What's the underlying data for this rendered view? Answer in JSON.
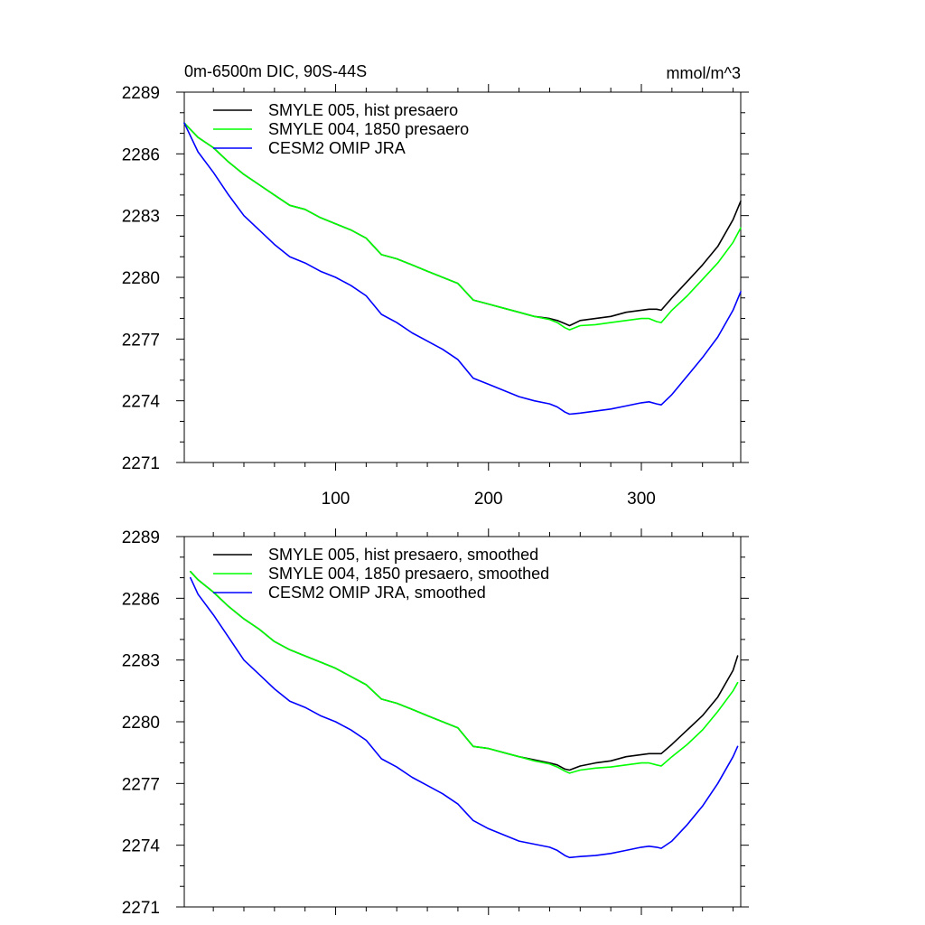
{
  "chart_data": [
    {
      "type": "line",
      "title": "0m-6500m DIC, 90S-44S",
      "units_label": "mmol/m^3",
      "xlim": [
        1,
        365
      ],
      "ylim": [
        2271,
        2289
      ],
      "yticks": [
        2271,
        2274,
        2277,
        2280,
        2283,
        2286,
        2289
      ],
      "xticks": [
        100,
        200,
        300
      ],
      "show_xtick_labels": true,
      "grid": false,
      "legend_position": "top-left",
      "series": [
        {
          "name": "SMYLE 005, hist presaero",
          "color": "#000000",
          "x": [
            1,
            10,
            20,
            30,
            40,
            50,
            60,
            70,
            80,
            90,
            100,
            110,
            120,
            130,
            140,
            150,
            160,
            170,
            180,
            190,
            200,
            210,
            220,
            230,
            240,
            245,
            250,
            253,
            260,
            270,
            280,
            290,
            300,
            305,
            310,
            313,
            320,
            330,
            340,
            350,
            360,
            365
          ],
          "y": [
            2287.5,
            2286.8,
            2286.3,
            2285.6,
            2285.0,
            2284.5,
            2284.0,
            2283.5,
            2283.3,
            2282.9,
            2282.6,
            2282.3,
            2281.9,
            2281.1,
            2280.9,
            2280.6,
            2280.3,
            2280.0,
            2279.7,
            2278.9,
            2278.7,
            2278.5,
            2278.3,
            2278.1,
            2278.0,
            2277.9,
            2277.75,
            2277.65,
            2277.9,
            2278.0,
            2278.1,
            2278.3,
            2278.4,
            2278.45,
            2278.45,
            2278.4,
            2279.0,
            2279.8,
            2280.6,
            2281.5,
            2282.8,
            2283.7
          ]
        },
        {
          "name": "SMYLE 004, 1850 presaero",
          "color": "#00ff00",
          "x": [
            1,
            10,
            20,
            30,
            40,
            50,
            60,
            70,
            80,
            90,
            100,
            110,
            120,
            130,
            140,
            150,
            160,
            170,
            180,
            190,
            200,
            210,
            220,
            230,
            240,
            245,
            250,
            253,
            260,
            270,
            280,
            290,
            300,
            305,
            310,
            313,
            320,
            330,
            340,
            350,
            360,
            365
          ],
          "y": [
            2287.5,
            2286.8,
            2286.3,
            2285.6,
            2285.0,
            2284.5,
            2284.0,
            2283.5,
            2283.3,
            2282.9,
            2282.6,
            2282.3,
            2281.9,
            2281.1,
            2280.9,
            2280.6,
            2280.3,
            2280.0,
            2279.7,
            2278.9,
            2278.7,
            2278.5,
            2278.3,
            2278.1,
            2277.95,
            2277.8,
            2277.55,
            2277.45,
            2277.65,
            2277.7,
            2277.8,
            2277.9,
            2278.0,
            2278.0,
            2277.85,
            2277.8,
            2278.4,
            2279.1,
            2279.9,
            2280.7,
            2281.7,
            2282.4
          ]
        },
        {
          "name": "CESM2 OMIP JRA",
          "color": "#0000ff",
          "x": [
            1,
            10,
            20,
            30,
            40,
            50,
            60,
            70,
            80,
            90,
            100,
            110,
            120,
            130,
            140,
            150,
            160,
            170,
            180,
            190,
            200,
            210,
            220,
            230,
            240,
            245,
            250,
            253,
            260,
            270,
            280,
            290,
            300,
            305,
            310,
            313,
            320,
            330,
            340,
            350,
            360,
            365
          ],
          "y": [
            2287.5,
            2286.1,
            2285.1,
            2284.0,
            2283.0,
            2282.3,
            2281.6,
            2281.0,
            2280.7,
            2280.3,
            2280.0,
            2279.6,
            2279.1,
            2278.2,
            2277.8,
            2277.3,
            2276.9,
            2276.5,
            2276.0,
            2275.1,
            2274.8,
            2274.5,
            2274.2,
            2274.0,
            2273.85,
            2273.7,
            2273.45,
            2273.35,
            2273.4,
            2273.5,
            2273.6,
            2273.75,
            2273.9,
            2273.95,
            2273.85,
            2273.8,
            2274.3,
            2275.2,
            2276.1,
            2277.1,
            2278.4,
            2279.3
          ]
        }
      ]
    },
    {
      "type": "line",
      "title": "",
      "xlim": [
        1,
        365
      ],
      "ylim": [
        2271,
        2289
      ],
      "yticks": [
        2271,
        2274,
        2277,
        2280,
        2283,
        2286,
        2289
      ],
      "xticks": [
        100,
        200,
        300
      ],
      "show_xtick_labels": false,
      "grid": false,
      "legend_position": "top-left",
      "series": [
        {
          "name": "SMYLE 005, hist presaero, smoothed",
          "color": "#000000",
          "x": [
            5,
            10,
            20,
            30,
            40,
            50,
            60,
            70,
            80,
            90,
            100,
            110,
            120,
            130,
            140,
            150,
            160,
            170,
            180,
            190,
            200,
            210,
            220,
            230,
            240,
            245,
            250,
            253,
            260,
            270,
            280,
            290,
            300,
            305,
            310,
            313,
            320,
            330,
            340,
            350,
            360,
            363
          ],
          "y": [
            2287.3,
            2286.9,
            2286.3,
            2285.6,
            2285.0,
            2284.5,
            2283.9,
            2283.5,
            2283.2,
            2282.9,
            2282.6,
            2282.2,
            2281.8,
            2281.1,
            2280.9,
            2280.6,
            2280.3,
            2280.0,
            2279.7,
            2278.8,
            2278.7,
            2278.5,
            2278.3,
            2278.15,
            2278.0,
            2277.9,
            2277.7,
            2277.65,
            2277.85,
            2278.0,
            2278.1,
            2278.3,
            2278.4,
            2278.45,
            2278.45,
            2278.45,
            2278.9,
            2279.6,
            2280.3,
            2281.2,
            2282.5,
            2283.2
          ]
        },
        {
          "name": "SMYLE 004, 1850 presaero, smoothed",
          "color": "#00ff00",
          "x": [
            5,
            10,
            20,
            30,
            40,
            50,
            60,
            70,
            80,
            90,
            100,
            110,
            120,
            130,
            140,
            150,
            160,
            170,
            180,
            190,
            200,
            210,
            220,
            230,
            240,
            245,
            250,
            253,
            260,
            270,
            280,
            290,
            300,
            305,
            310,
            313,
            320,
            330,
            340,
            350,
            360,
            363
          ],
          "y": [
            2287.3,
            2286.9,
            2286.3,
            2285.6,
            2285.0,
            2284.5,
            2283.9,
            2283.5,
            2283.2,
            2282.9,
            2282.6,
            2282.2,
            2281.8,
            2281.1,
            2280.9,
            2280.6,
            2280.3,
            2280.0,
            2279.7,
            2278.8,
            2278.7,
            2278.5,
            2278.3,
            2278.1,
            2277.95,
            2277.8,
            2277.6,
            2277.5,
            2277.65,
            2277.75,
            2277.8,
            2277.9,
            2278.0,
            2278.0,
            2277.9,
            2277.85,
            2278.3,
            2278.9,
            2279.6,
            2280.5,
            2281.5,
            2281.9
          ]
        },
        {
          "name": "CESM2 OMIP JRA, smoothed",
          "color": "#0000ff",
          "x": [
            5,
            10,
            20,
            30,
            40,
            50,
            60,
            70,
            80,
            90,
            100,
            110,
            120,
            130,
            140,
            150,
            160,
            170,
            180,
            190,
            200,
            210,
            220,
            230,
            240,
            245,
            250,
            253,
            260,
            270,
            280,
            290,
            300,
            305,
            310,
            313,
            320,
            330,
            340,
            350,
            360,
            363
          ],
          "y": [
            2287.0,
            2286.2,
            2285.2,
            2284.1,
            2283.0,
            2282.3,
            2281.6,
            2281.0,
            2280.7,
            2280.3,
            2280.0,
            2279.6,
            2279.1,
            2278.2,
            2277.8,
            2277.3,
            2276.9,
            2276.5,
            2276.0,
            2275.2,
            2274.8,
            2274.5,
            2274.2,
            2274.05,
            2273.9,
            2273.75,
            2273.5,
            2273.4,
            2273.45,
            2273.5,
            2273.6,
            2273.75,
            2273.9,
            2273.95,
            2273.9,
            2273.85,
            2274.2,
            2275.0,
            2275.9,
            2277.0,
            2278.3,
            2278.8
          ]
        }
      ]
    }
  ]
}
